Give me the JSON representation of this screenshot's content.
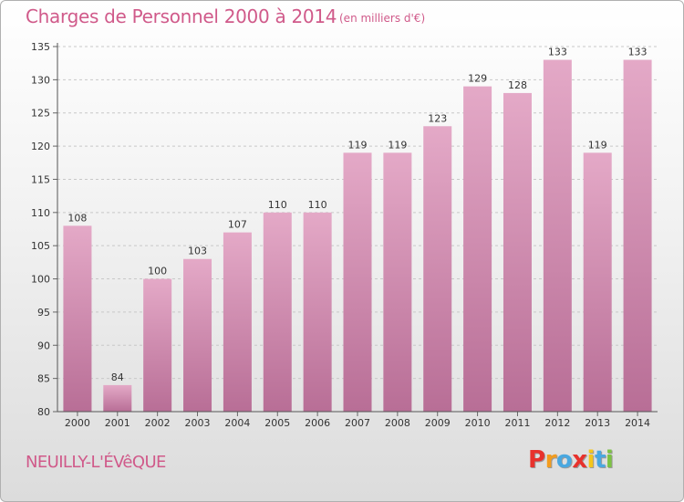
{
  "header": {
    "title": "Charges de Personnel 2000 à 2014",
    "subtitle": "(en milliers d'€)"
  },
  "footer": {
    "commune": "NEUILLY-L'ÉVêQUE",
    "logo": "Proxiti",
    "logo_colors": [
      "#e8322d",
      "#f39c1f",
      "#4aa8e0",
      "#e8322d",
      "#f5c61b",
      "#4aa8e0",
      "#7cc243"
    ]
  },
  "colors": {
    "accent": "#d05a8a",
    "bar_top": "#e4a9c7",
    "bar_bottom": "#b86e96"
  },
  "chart_data": {
    "type": "bar",
    "categories": [
      "2000",
      "2001",
      "2002",
      "2003",
      "2004",
      "2005",
      "2006",
      "2007",
      "2008",
      "2009",
      "2010",
      "2011",
      "2012",
      "2013",
      "2014"
    ],
    "values": [
      108,
      84,
      100,
      103,
      107,
      110,
      110,
      119,
      119,
      123,
      129,
      128,
      133,
      119,
      133
    ],
    "ylim": [
      80,
      135
    ],
    "yticks": [
      80,
      85,
      90,
      95,
      100,
      105,
      110,
      115,
      120,
      125,
      130,
      135
    ],
    "grid": true,
    "xlabel": "",
    "ylabel": ""
  }
}
